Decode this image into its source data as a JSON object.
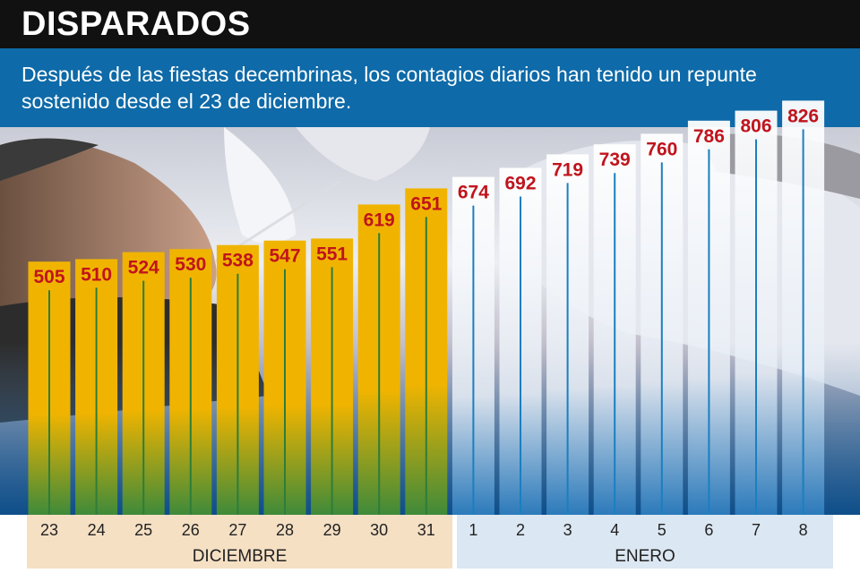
{
  "title": "DISPARADOS",
  "subtitle": "Después de las fiestas decembrinas, los contagios diarios han tenido un repunte sostenido desde el 23 de diciembre.",
  "colors": {
    "title_bar": "#111111",
    "subtitle_bar": "#0e6aa8",
    "december_bar": "#f0b400",
    "january_bar": "#e8eef6",
    "value_label": "#c0141c",
    "stem": "#1a7fc0"
  },
  "chart_data": {
    "type": "bar",
    "categories": [
      "23",
      "24",
      "25",
      "26",
      "27",
      "28",
      "29",
      "30",
      "31",
      "1",
      "2",
      "3",
      "4",
      "5",
      "6",
      "7",
      "8"
    ],
    "values": [
      505,
      510,
      524,
      530,
      538,
      547,
      551,
      619,
      651,
      674,
      692,
      719,
      739,
      760,
      786,
      806,
      826
    ],
    "groups": [
      {
        "label": "DICIEMBRE",
        "categories": [
          "23",
          "24",
          "25",
          "26",
          "27",
          "28",
          "29",
          "30",
          "31"
        ]
      },
      {
        "label": "ENERO",
        "categories": [
          "1",
          "2",
          "3",
          "4",
          "5",
          "6",
          "7",
          "8"
        ]
      }
    ],
    "ylim": [
      0,
      900
    ],
    "grid": false,
    "legend": "none"
  }
}
